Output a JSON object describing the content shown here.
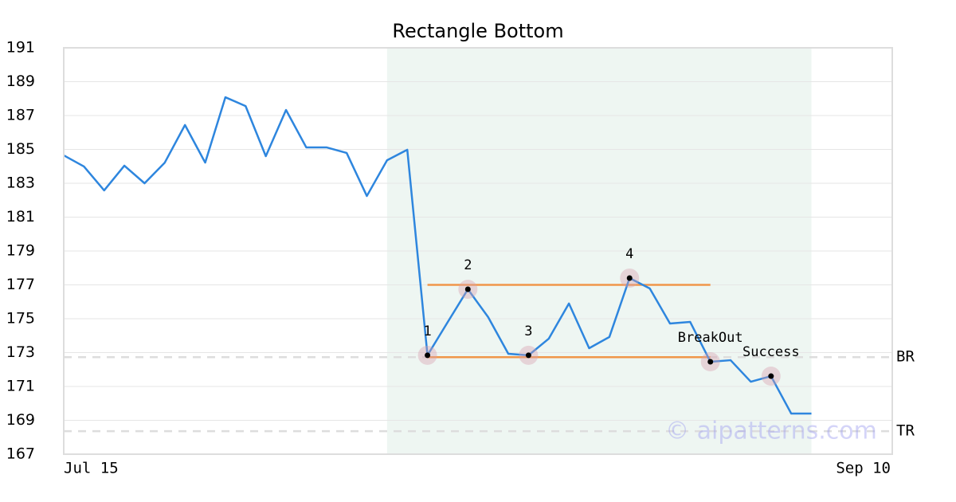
{
  "chart_data": {
    "type": "line",
    "title": "Rectangle Bottom",
    "categories": [
      "Jul 15",
      null,
      null,
      null,
      null,
      null,
      null,
      null,
      null,
      null,
      null,
      null,
      null,
      null,
      null,
      null,
      null,
      null,
      null,
      null,
      null,
      null,
      null,
      null,
      null,
      null,
      null,
      null,
      null,
      null,
      null,
      null,
      null,
      null,
      null,
      null,
      null,
      null,
      null,
      null,
      null,
      "Sep 10"
    ],
    "values": [
      184.65,
      183.99,
      182.58,
      184.04,
      183.0,
      184.22,
      186.44,
      184.22,
      188.08,
      187.56,
      184.6,
      187.33,
      185.12,
      185.12,
      184.79,
      182.25,
      184.36,
      184.98,
      172.84,
      174.8,
      176.74,
      175.1,
      172.93,
      172.84,
      173.82,
      175.9,
      173.26,
      173.92,
      177.4,
      176.79,
      174.72,
      174.81,
      172.46,
      172.55,
      171.28,
      171.61,
      169.4,
      169.4,
      null,
      null,
      null,
      null
    ],
    "color": "#2e86de",
    "ylim": [
      167,
      191
    ],
    "yticks": [
      167,
      169,
      171,
      173,
      175,
      177,
      179,
      181,
      183,
      185,
      187,
      189,
      191
    ],
    "grid": true,
    "shaded_range": [
      16,
      37
    ],
    "shade_color": "#eef6f2",
    "pattern_lines": [
      {
        "value": 177.0,
        "start": 18,
        "end": 32
      },
      {
        "value": 172.73,
        "start": 18,
        "end": 32
      }
    ],
    "pattern_color": "#f0964a",
    "levels": [
      {
        "label": "BR",
        "value": 172.73
      },
      {
        "label": "TR",
        "value": 168.36
      }
    ],
    "points": [
      {
        "label": "1",
        "index": 18
      },
      {
        "label": "2",
        "index": 20
      },
      {
        "label": "3",
        "index": 23
      },
      {
        "label": "4",
        "index": 28
      },
      {
        "label": "BreakOut",
        "index": 32
      },
      {
        "label": "Success",
        "index": 35
      }
    ],
    "watermark": "© aipatterns.com"
  }
}
